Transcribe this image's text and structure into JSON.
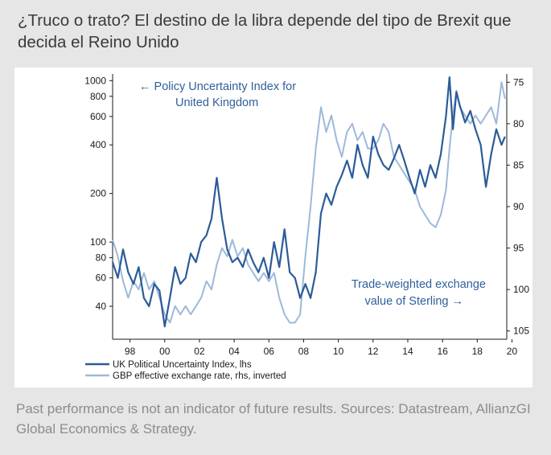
{
  "header": {
    "title": "¿Truco o trato? El destino de la libra depende del tipo de Brexit que decida el Reino Unido"
  },
  "footer": {
    "source": "Past performance is not an indicator of future results. Sources: Datastream, AllianzGI Global Economics & Strategy."
  },
  "colors": {
    "uncertainty": "#2b5c97",
    "sterling": "#9db9da",
    "text": "#1a1a1a",
    "annotation": "#2f5f9a"
  },
  "chart_data": {
    "type": "line",
    "title": "",
    "xlabel": "",
    "x_range": [
      1997,
      2019.7
    ],
    "x_ticks": [
      1998,
      2000,
      2002,
      2004,
      2006,
      2008,
      2010,
      2012,
      2014,
      2016,
      2018,
      2020
    ],
    "x_tick_labels": [
      "98",
      "00",
      "02",
      "04",
      "06",
      "08",
      "10",
      "12",
      "14",
      "16",
      "18",
      "20"
    ],
    "left_axis": {
      "label": "UK Political Uncertainty Index, lhs",
      "scale": "log",
      "range": [
        25,
        1100
      ],
      "ticks": [
        40,
        60,
        80,
        100,
        200,
        400,
        600,
        800,
        1000
      ],
      "tick_labels": [
        "40",
        "60",
        "80",
        "100",
        "200",
        "400",
        "600",
        "800",
        "1000"
      ]
    },
    "right_axis": {
      "label": "GBP effective exchange rate, rhs, inverted",
      "inverted": true,
      "range": [
        74,
        106
      ],
      "ticks": [
        75,
        80,
        85,
        90,
        95,
        100,
        105
      ],
      "tick_labels": [
        "75",
        "80",
        "85",
        "90",
        "95",
        "100",
        "105"
      ]
    },
    "annotations": {
      "uncertainty_line1": "← Policy Uncertainty Index for",
      "uncertainty_line2": "United Kingdom",
      "sterling_line1": "Trade-weighted exchange",
      "sterling_line2": "value of Sterling →"
    },
    "legend": {
      "position": "bottom-left",
      "items": [
        "UK Political Uncertainty Index, lhs",
        "GBP effective exchange rate, rhs, inverted"
      ]
    },
    "series": [
      {
        "name": "UK Political Uncertainty Index, lhs",
        "axis": "left",
        "x": [
          1997.0,
          1997.3,
          1997.6,
          1997.9,
          1998.2,
          1998.5,
          1998.8,
          1999.1,
          1999.4,
          1999.7,
          2000.0,
          2000.3,
          2000.6,
          2000.9,
          2001.2,
          2001.5,
          2001.8,
          2002.1,
          2002.4,
          2002.7,
          2003.0,
          2003.3,
          2003.6,
          2003.9,
          2004.2,
          2004.5,
          2004.8,
          2005.1,
          2005.4,
          2005.7,
          2006.0,
          2006.3,
          2006.6,
          2006.9,
          2007.2,
          2007.5,
          2007.8,
          2008.1,
          2008.4,
          2008.7,
          2009.0,
          2009.3,
          2009.6,
          2009.9,
          2010.2,
          2010.5,
          2010.8,
          2011.1,
          2011.4,
          2011.7,
          2012.0,
          2012.3,
          2012.6,
          2012.9,
          2013.2,
          2013.5,
          2013.8,
          2014.1,
          2014.4,
          2014.7,
          2015.0,
          2015.3,
          2015.6,
          2015.9,
          2016.2,
          2016.4,
          2016.6,
          2016.8,
          2017.0,
          2017.3,
          2017.6,
          2017.9,
          2018.2,
          2018.5,
          2018.8,
          2019.1,
          2019.4,
          2019.6
        ],
        "values": [
          75,
          60,
          90,
          65,
          55,
          70,
          45,
          40,
          55,
          50,
          30,
          45,
          70,
          55,
          60,
          85,
          75,
          100,
          110,
          140,
          250,
          140,
          90,
          75,
          80,
          70,
          90,
          75,
          65,
          80,
          60,
          100,
          70,
          120,
          65,
          60,
          45,
          55,
          45,
          65,
          150,
          200,
          170,
          220,
          260,
          320,
          250,
          400,
          300,
          250,
          450,
          350,
          300,
          280,
          330,
          400,
          320,
          250,
          200,
          280,
          220,
          300,
          250,
          350,
          600,
          1050,
          500,
          850,
          700,
          550,
          650,
          500,
          400,
          220,
          350,
          500,
          400,
          450
        ]
      },
      {
        "name": "GBP effective exchange rate, rhs, inverted",
        "axis": "right",
        "x": [
          1997.0,
          1997.3,
          1997.6,
          1997.9,
          1998.2,
          1998.5,
          1998.8,
          1999.1,
          1999.4,
          1999.7,
          2000.0,
          2000.3,
          2000.6,
          2000.9,
          2001.2,
          2001.5,
          2001.8,
          2002.1,
          2002.4,
          2002.7,
          2003.0,
          2003.3,
          2003.6,
          2003.9,
          2004.2,
          2004.5,
          2004.8,
          2005.1,
          2005.4,
          2005.7,
          2006.0,
          2006.3,
          2006.6,
          2006.9,
          2007.2,
          2007.5,
          2007.8,
          2008.1,
          2008.4,
          2008.7,
          2009.0,
          2009.3,
          2009.6,
          2009.9,
          2010.2,
          2010.5,
          2010.8,
          2011.1,
          2011.4,
          2011.7,
          2012.0,
          2012.3,
          2012.6,
          2012.9,
          2013.2,
          2013.5,
          2013.8,
          2014.1,
          2014.4,
          2014.7,
          2015.0,
          2015.3,
          2015.6,
          2015.9,
          2016.2,
          2016.4,
          2016.6,
          2016.8,
          2017.0,
          2017.3,
          2017.6,
          2017.9,
          2018.2,
          2018.5,
          2018.8,
          2019.1,
          2019.4,
          2019.6
        ],
        "values": [
          94,
          96,
          99,
          101,
          99,
          100,
          98,
          100,
          99,
          101,
          103,
          104,
          102,
          103,
          102,
          103,
          102,
          101,
          99,
          100,
          97,
          95,
          96,
          94,
          96,
          95,
          97,
          98,
          99,
          98,
          99,
          98,
          101,
          103,
          104,
          104,
          103,
          96,
          90,
          83,
          78,
          81,
          79,
          82,
          84,
          81,
          80,
          82,
          81,
          83,
          83,
          82,
          80,
          81,
          84,
          85,
          86,
          87,
          88,
          90,
          91,
          92,
          92.5,
          91,
          88,
          83,
          79,
          76,
          78,
          79,
          80,
          79,
          80,
          79,
          78,
          80,
          75,
          77
        ]
      }
    ]
  }
}
